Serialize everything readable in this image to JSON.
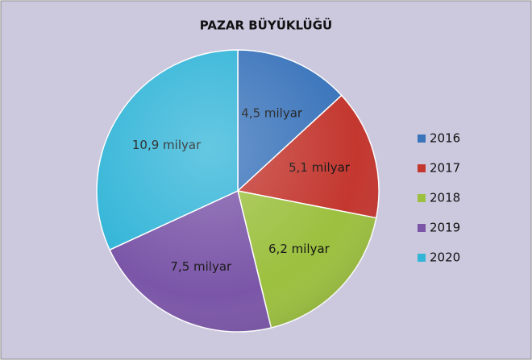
{
  "chart_data": {
    "type": "pie",
    "title": "PAZAR BÜYÜKLÜĞÜ",
    "categories": [
      "2016",
      "2017",
      "2018",
      "2019",
      "2020"
    ],
    "values": [
      4.5,
      5.1,
      6.2,
      7.5,
      10.9
    ],
    "value_labels": [
      "4,5 milyar",
      "5,1 milyar",
      "6,2 milyar",
      "7,5 milyar",
      "10,9 milyar"
    ],
    "colors": [
      "#3a74bb",
      "#c3372f",
      "#9cc03f",
      "#7b56a8",
      "#33b5d8"
    ],
    "legend": "right"
  }
}
